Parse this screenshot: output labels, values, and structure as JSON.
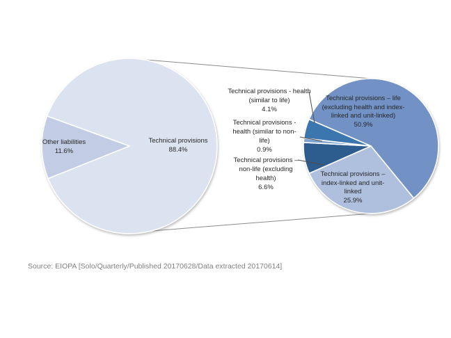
{
  "source_note": "Source: EIOPA [Solo/Quarterly/Published 20170628/Data extracted 20170614]",
  "chart_data": {
    "type": "pie",
    "subtype": "pie-of-pie",
    "title": "",
    "legend": "none",
    "background": "#ffffff",
    "main_pie": {
      "start_angle_deg": 290,
      "slices": [
        {
          "label": "Technical provisions",
          "pct": 88.4,
          "pct_label": "88.4%",
          "color": "#dce3f0"
        },
        {
          "label": "Other liabilities",
          "pct": 11.6,
          "pct_label": "11.6%",
          "color": "#c2cde5"
        }
      ]
    },
    "secondary_pie": {
      "start_angle_deg": 293.4,
      "slices": [
        {
          "label": "Technical provisions – life (excluding health and index-linked and unit-linked)",
          "pct": 50.9,
          "pct_label": "50.9%",
          "color": "#7292c6"
        },
        {
          "label": "Technical provisions – index-linked and unit-linked",
          "pct": 25.9,
          "pct_label": "25.9%",
          "color": "#afc0df"
        },
        {
          "label": "Technical provisions – non-life (excluding health)",
          "pct": 6.6,
          "pct_label": "6.6%",
          "color": "#2d5d8e"
        },
        {
          "label": "Technical provisions - health (similar to non-life)",
          "pct": 0.9,
          "pct_label": "0.9%",
          "color": "#7fa3cf"
        },
        {
          "label": "Technical provisions - health (similar to life)",
          "pct": 4.1,
          "pct_label": "4.1%",
          "color": "#3c76ae"
        }
      ]
    },
    "labels": {
      "main_inside": [
        {
          "lines": [
            "Technical provisions",
            "88.4%"
          ]
        },
        {
          "lines": [
            "Other liabilities",
            "11.6%"
          ]
        }
      ],
      "secondary_inside": [
        {
          "lines": [
            "Technical provisions – life",
            "(excluding health and index-",
            "linked and unit-linked)",
            "50.9%"
          ]
        },
        {
          "lines": [
            "Technical provisions –",
            "index-linked and unit-",
            "linked",
            "25.9%"
          ]
        }
      ],
      "callouts": [
        {
          "lines": [
            "Technical provisions - health",
            "(similar to life)",
            "4.1%"
          ]
        },
        {
          "lines": [
            "Technical provisions -",
            "health (similar to non-",
            "life)",
            "0.9%"
          ]
        },
        {
          "lines": [
            "Technical provisions –",
            "non-life (excluding",
            "health)",
            "6.6%"
          ]
        }
      ]
    }
  }
}
